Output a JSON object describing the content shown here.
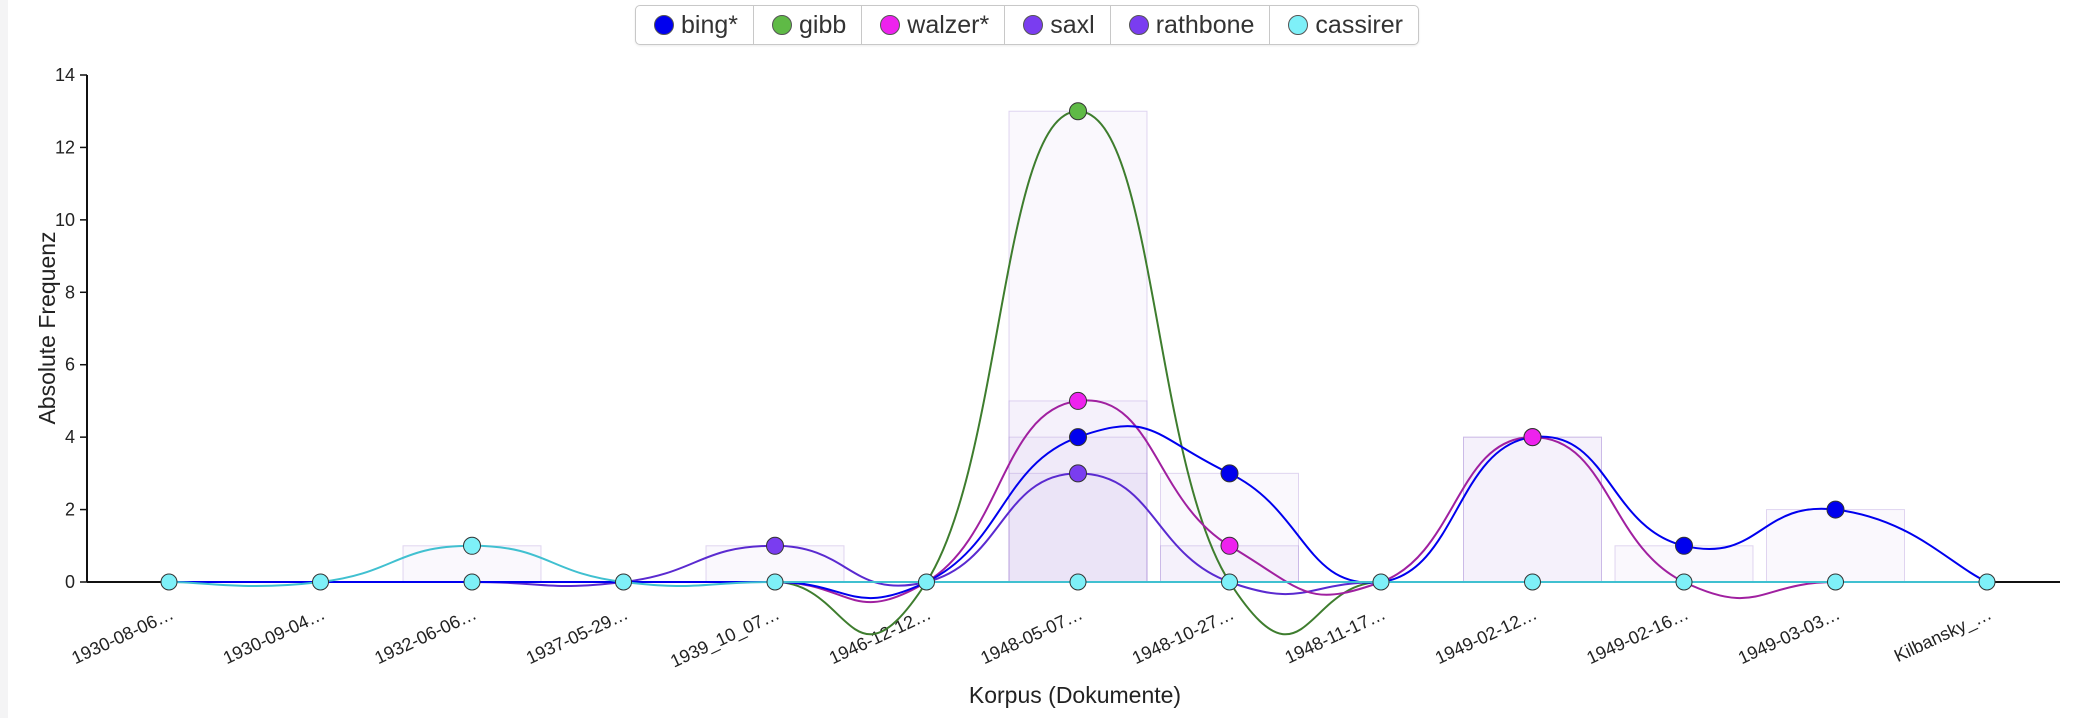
{
  "chart_data": {
    "type": "line",
    "xlabel": "Korpus (Dokumente)",
    "ylabel": "Absolute Frequenz",
    "ylim": [
      0,
      14
    ],
    "yticks": [
      0,
      2,
      4,
      6,
      8,
      10,
      12,
      14
    ],
    "categories": [
      "1930-08-06…",
      "1930-09-04…",
      "1932-06-06…",
      "1937-05-29…",
      "1939_10_07…",
      "1946-12-12…",
      "1948-05-07…",
      "1948-10-27…",
      "1948-11-17…",
      "1949-02-12…",
      "1949-02-16…",
      "1949-03-03…",
      "Kilbansky_…"
    ],
    "series": [
      {
        "name": "bing*",
        "color": "#0000ee",
        "values": [
          0,
          0,
          0,
          0,
          0,
          0,
          4,
          3,
          0,
          4,
          1,
          2,
          0
        ]
      },
      {
        "name": "gibb",
        "color": "#5fba46",
        "line_color": "#3e7d2e",
        "values": [
          0,
          0,
          0,
          0,
          0,
          0,
          13,
          0,
          0,
          0,
          0,
          0,
          0
        ]
      },
      {
        "name": "walzer*",
        "color": "#ee22ee",
        "line_color": "#a020a0",
        "values": [
          0,
          0,
          0,
          0,
          0,
          0,
          5,
          1,
          0,
          4,
          0,
          0,
          0
        ]
      },
      {
        "name": "saxl",
        "color": "#7a3df0",
        "line_color": "#5a2ad0",
        "values": [
          0,
          0,
          0,
          0,
          1,
          0,
          3,
          0,
          0,
          0,
          0,
          0,
          0
        ]
      },
      {
        "name": "rathbone",
        "color": "#7a3df0",
        "line_color": "#5a2ad0",
        "values": [
          0,
          0,
          0,
          0,
          0,
          0,
          0,
          0,
          0,
          0,
          0,
          0,
          0
        ]
      },
      {
        "name": "cassirer",
        "color": "#7ef0f8",
        "line_color": "#40c0d0",
        "values": [
          0,
          0,
          1,
          0,
          0,
          0,
          0,
          0,
          0,
          0,
          0,
          0,
          0
        ]
      }
    ],
    "grid": false,
    "legend_position": "top-center"
  }
}
